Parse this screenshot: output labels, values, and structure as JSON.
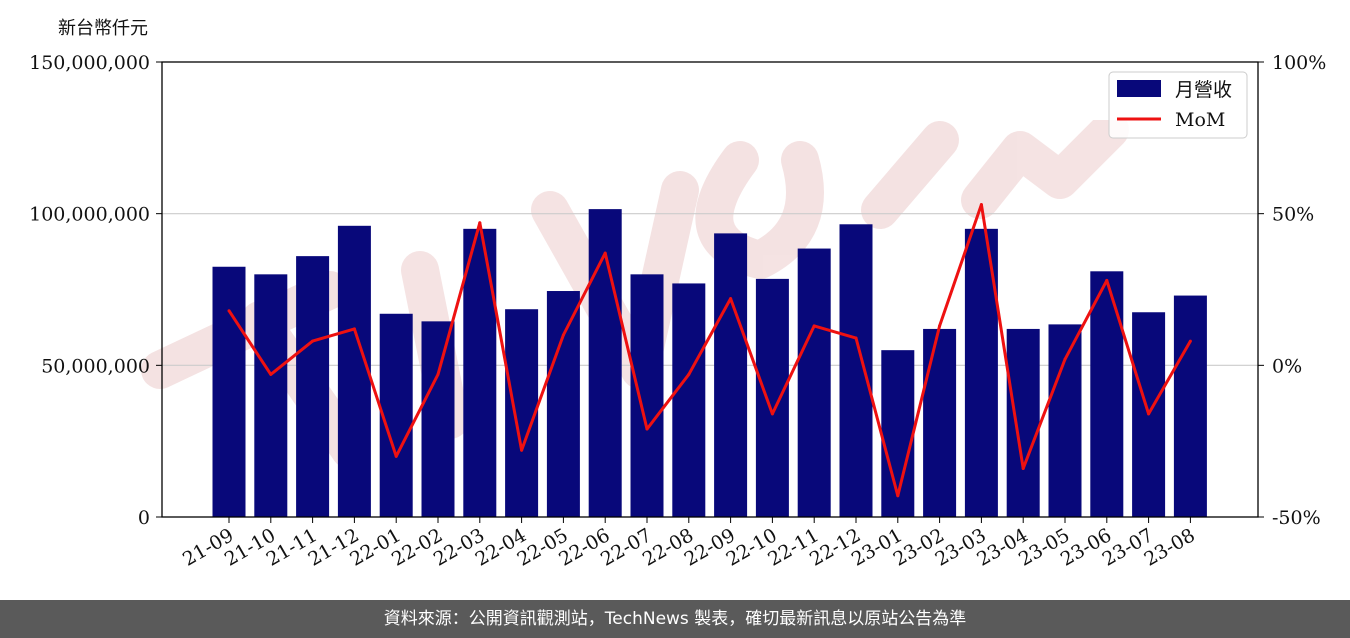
{
  "unit_label": "新台幣仟元",
  "footer_text": "資料來源：公開資訊觀測站，TechNews 製表，確切最新訊息以原站公告為準",
  "colors": {
    "bar": "#08087a",
    "line": "#ee1111",
    "grid": "#cccccc",
    "watermark": "#f2dcdc"
  },
  "chart_data": {
    "type": "bar",
    "categories": [
      "21-09",
      "21-10",
      "21-11",
      "21-12",
      "22-01",
      "22-02",
      "22-03",
      "22-04",
      "22-05",
      "22-06",
      "22-07",
      "22-08",
      "22-09",
      "22-10",
      "22-11",
      "22-12",
      "23-01",
      "23-02",
      "23-03",
      "23-04",
      "23-05",
      "23-06",
      "23-07",
      "23-08"
    ],
    "series": [
      {
        "name": "月營收",
        "type": "bar",
        "axis": "left",
        "values": [
          82500000,
          80000000,
          86000000,
          96000000,
          67000000,
          64500000,
          95000000,
          68500000,
          74500000,
          101500000,
          80000000,
          77000000,
          93500000,
          78500000,
          88500000,
          96500000,
          55000000,
          62000000,
          95000000,
          62000000,
          63500000,
          81000000,
          67500000,
          73000000
        ]
      },
      {
        "name": "MoM",
        "type": "line",
        "axis": "right",
        "values": [
          18,
          -3,
          8,
          12,
          -30,
          -3,
          47,
          -28,
          10,
          37,
          -21,
          -3,
          22,
          -16,
          13,
          9,
          -43,
          13,
          53,
          -34,
          2,
          28,
          -16,
          8
        ]
      }
    ],
    "yticks_left": [
      "0",
      "50,000,000",
      "100,000,000",
      "150,000,000"
    ],
    "yticks_right": [
      "-50%",
      "0%",
      "50%",
      "100%"
    ],
    "ylim_left": [
      0,
      150000000
    ],
    "ylim_right": [
      -50,
      100
    ],
    "grid": true,
    "legend_position": "top-right"
  }
}
